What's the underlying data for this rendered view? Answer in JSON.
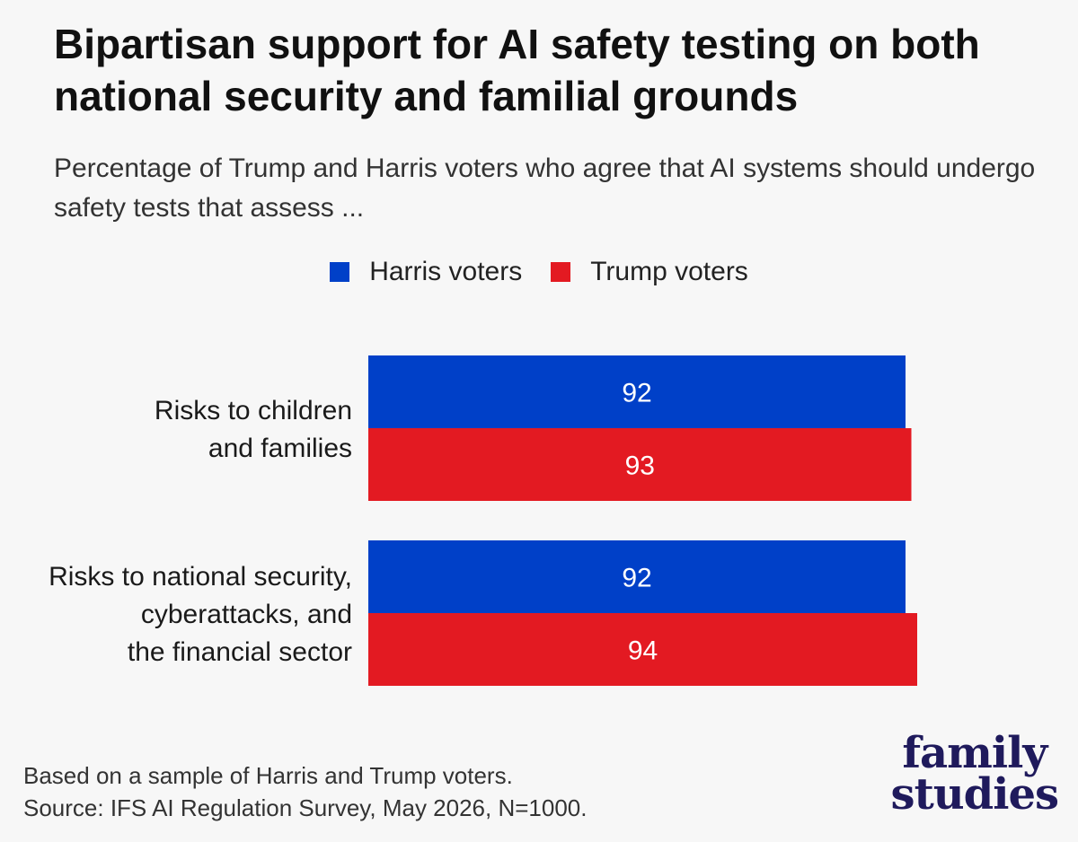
{
  "colors": {
    "harris": "#0040c8",
    "trump": "#e31a22",
    "background": "#f7f7f7",
    "logo": "#1f1a5c"
  },
  "header": {
    "title": "Bipartisan support for AI safety testing on both national security and familial grounds",
    "subtitle": "Percentage of Trump and Harris voters who agree that AI systems should undergo safety tests that assess ..."
  },
  "chart_data": {
    "type": "bar",
    "orientation": "horizontal",
    "categories": [
      [
        "Risks to children",
        "and families"
      ],
      [
        "Risks to national security,",
        "cyberattacks, and",
        "the financial sector"
      ]
    ],
    "series": [
      {
        "name": "Harris voters",
        "color": "#0040c8",
        "values": [
          92,
          92
        ]
      },
      {
        "name": "Trump voters",
        "color": "#e31a22",
        "values": [
          93,
          94
        ]
      }
    ],
    "xlim": [
      0,
      100
    ],
    "grid": false,
    "legend_position": "top-center",
    "data_labels": true
  },
  "footer": {
    "note_line1": "Based on a sample of Harris and Trump voters.",
    "note_line2": "Source: IFS AI Regulation Survey, May 2026, N=1000.",
    "logo_line1": "family",
    "logo_line2": "studies"
  }
}
